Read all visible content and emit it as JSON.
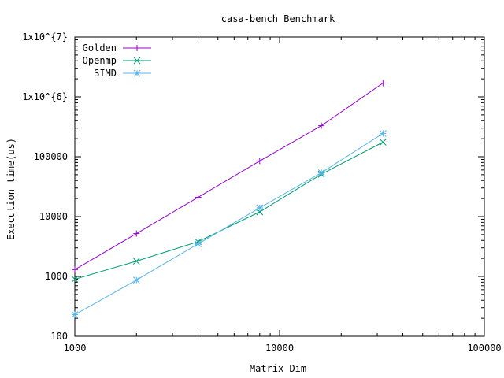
{
  "chart_data": {
    "type": "line",
    "title": "casa-bench Benchmark",
    "xlabel": "Matrix Dim",
    "ylabel": "Execution time(us)",
    "x_scale": "log",
    "y_scale": "log",
    "xlim": [
      1000,
      100000
    ],
    "ylim": [
      100,
      10000000
    ],
    "x_ticks": [
      {
        "value": 1000,
        "label": "1000"
      },
      {
        "value": 10000,
        "label": "10000"
      },
      {
        "value": 100000,
        "label": "100000"
      }
    ],
    "y_ticks": [
      {
        "value": 100,
        "label": "100"
      },
      {
        "value": 1000,
        "label": "1000"
      },
      {
        "value": 10000,
        "label": "10000"
      },
      {
        "value": 100000,
        "label": "100000"
      },
      {
        "value": 1000000,
        "label": "1x10^{6}"
      },
      {
        "value": 10000000,
        "label": "1x10^{7}"
      }
    ],
    "legend_position": "top-left",
    "grid": false,
    "x": [
      1000,
      2000,
      4000,
      8000,
      16000,
      32000
    ],
    "series": [
      {
        "name": "Golden",
        "color": "#9400d3",
        "marker": "plus",
        "values": [
          1300,
          5200,
          21000,
          85000,
          330000,
          1700000
        ]
      },
      {
        "name": "Openmp",
        "color": "#009e73",
        "marker": "cross",
        "values": [
          900,
          1800,
          3800,
          12000,
          51000,
          175000
        ]
      },
      {
        "name": "SIMD",
        "color": "#56b4e9",
        "marker": "star",
        "values": [
          230,
          870,
          3500,
          14000,
          54000,
          245000
        ]
      }
    ]
  }
}
